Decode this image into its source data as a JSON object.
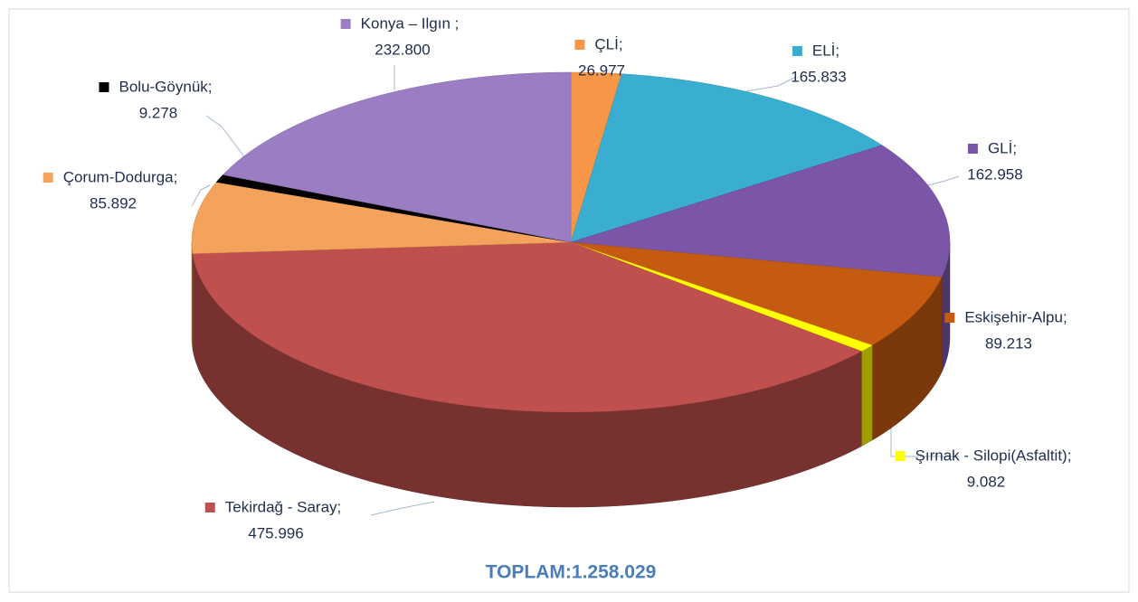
{
  "chart_data": {
    "type": "pie3d",
    "categories": [
      "ÇLİ;",
      "ELİ;",
      "GLİ;",
      "Eskişehir-Alpu;",
      "Şırnak - Silopi(Asfaltit);",
      "Tekirdağ - Saray;",
      "Çorum-Dodurga;",
      "Bolu-Göynük;",
      "Konya – Ilgın ;"
    ],
    "values": [
      26977,
      165833,
      162958,
      89213,
      9082,
      475996,
      85892,
      9278,
      232800
    ],
    "value_labels": [
      "26.977",
      "165.833",
      "162.958",
      "89.213",
      "9.082",
      "475.996",
      "85.892",
      "9.278",
      "232.800"
    ],
    "colors": [
      "#f79646",
      "#3aaed0",
      "#7b56a8",
      "#c55a11",
      "#ffff00",
      "#c0504d",
      "#f3a35c",
      "#000000",
      "#9a7dc2"
    ],
    "annotation": "TOPLAM:1.258.029"
  }
}
